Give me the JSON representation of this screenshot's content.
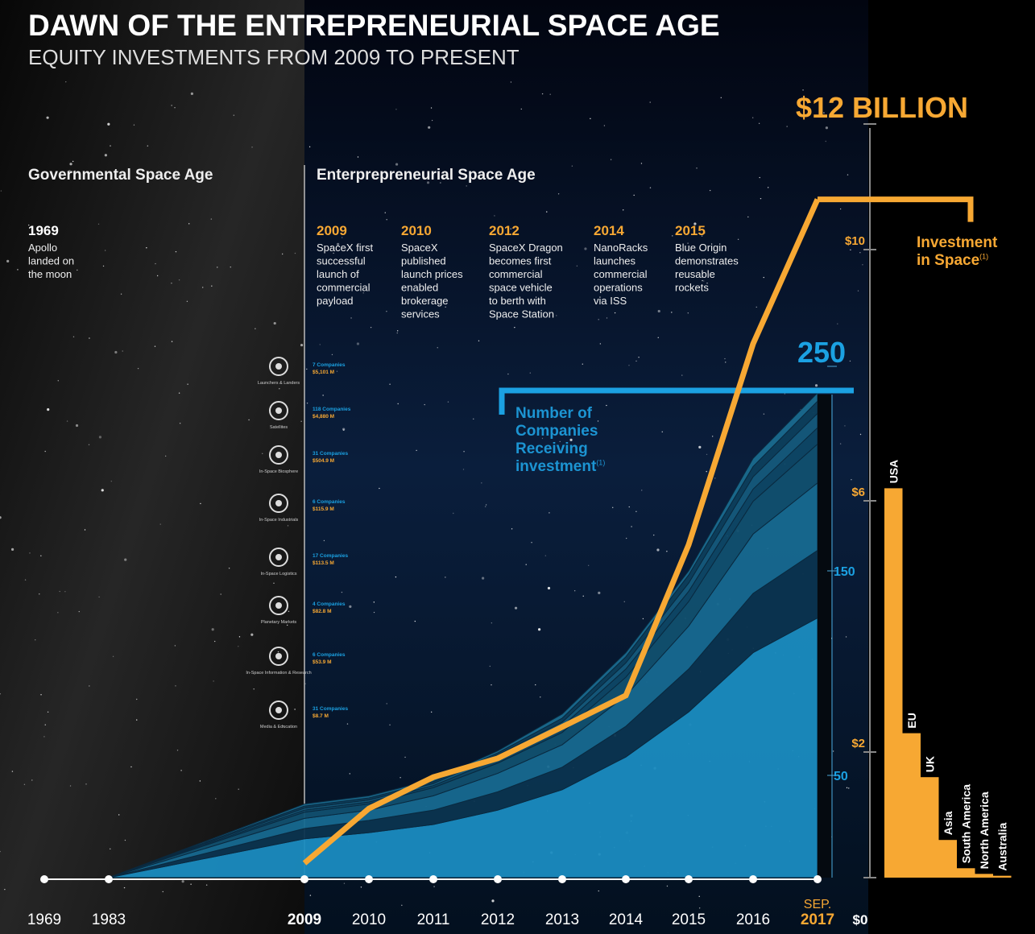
{
  "chart_data": [
    {
      "type": "line",
      "title": "DAWN OF THE ENTREPRENEURIAL SPACE AGE",
      "subtitle": "EQUITY INVESTMENTS FROM 2009 TO PRESENT",
      "categories": [
        "1969",
        "1983",
        "2009",
        "2010",
        "2011",
        "2012",
        "2013",
        "2014",
        "2015",
        "2016",
        "2017"
      ],
      "category_note": "SEP.",
      "series": [
        {
          "name": "Investment in Space",
          "note": "(1)",
          "color": "#f7a833",
          "values": [
            null,
            null,
            0.23,
            1.1,
            1.6,
            1.9,
            2.4,
            2.9,
            5.3,
            8.5,
            10.8
          ]
        }
      ],
      "ylim": [
        0,
        12.5
      ],
      "yticks": [
        {
          "value": 0,
          "label": "$0"
        },
        {
          "value": 2,
          "label": "$2"
        },
        {
          "value": 6,
          "label": "$6"
        },
        {
          "value": 10,
          "label": "$10"
        },
        {
          "value": 12,
          "label": "$12 BILLION"
        }
      ],
      "eras": [
        "Governmental Space Age",
        "Enterprepreneurial Space Age"
      ],
      "milestones": [
        {
          "year": "1969",
          "lines": [
            "Apollo",
            "landed on",
            "the moon"
          ]
        },
        {
          "year": "2009",
          "lines": [
            "SpaceX first",
            "successful",
            "launch of",
            "commercial",
            "payload"
          ]
        },
        {
          "year": "2010",
          "lines": [
            "SpaceX",
            "published",
            "launch prices",
            "enabled",
            "brokerage",
            "services"
          ]
        },
        {
          "year": "2012",
          "lines": [
            "SpaceX Dragon",
            "becomes first",
            "commercial",
            "space vehicle",
            "to berth with",
            "Space Station"
          ]
        },
        {
          "year": "2014",
          "lines": [
            "NanoRacks",
            "launches",
            "commercial",
            "operations",
            "via ISS"
          ]
        },
        {
          "year": "2015",
          "lines": [
            "Blue Origin",
            "demonstrates",
            "reusable",
            "rockets"
          ]
        }
      ]
    },
    {
      "type": "area",
      "stacked": true,
      "title": "Number of Companies Receiving investment",
      "title_note": "(1)",
      "ylim": [
        0,
        250
      ],
      "yticks": [
        50,
        150,
        250
      ],
      "series": [
        {
          "name": "Launchers & Landers",
          "companies": "7 Companies",
          "investment": "$5,101 M",
          "color": "#0e4766",
          "values": [
            null,
            0,
            1,
            1,
            1,
            2,
            3,
            4,
            5,
            6,
            8
          ]
        },
        {
          "name": "Satellites",
          "companies": "118 Companies",
          "investment": "$4,880 M",
          "color": "#1b8cc0",
          "values": [
            null,
            0,
            19,
            22,
            26,
            33,
            43,
            59,
            81,
            110,
            127
          ]
        },
        {
          "name": "In-Space Biosphere",
          "companies": "31 Companies",
          "investment": "$504.9 M",
          "color": "#0b3450",
          "values": [
            null,
            0,
            5,
            6,
            7,
            9,
            11,
            15,
            21,
            29,
            33
          ]
        },
        {
          "name": "In-Space Industrials",
          "companies": "6 Companies",
          "investment": "$115.9 M",
          "color": "#155a7c",
          "values": [
            null,
            0,
            1,
            1,
            1,
            2,
            2,
            3,
            4,
            6,
            7
          ]
        },
        {
          "name": "In-Space Logistics",
          "companies": "17 Companies",
          "investment": "$113.5 M",
          "color": "#11506f",
          "values": [
            null,
            0,
            3,
            3,
            4,
            5,
            6,
            9,
            12,
            16,
            19
          ]
        },
        {
          "name": "Planetary Markets",
          "companies": "4 Companies",
          "investment": "$82.8 M",
          "color": "#1a6b8f",
          "values": [
            null,
            0,
            1,
            1,
            1,
            1,
            2,
            2,
            2,
            4,
            4
          ]
        },
        {
          "name": "In-Space Information & Research",
          "companies": "6 Companies",
          "investment": "$53.9 M",
          "color": "#0d3f5c",
          "values": [
            null,
            0,
            1,
            1,
            1,
            1,
            2,
            3,
            4,
            5,
            6
          ]
        },
        {
          "name": "Media & Education",
          "companies": "31 Companies",
          "investment": "$8.7 M",
          "color": "#176a91",
          "values": [
            null,
            0,
            5,
            5,
            7,
            9,
            11,
            15,
            21,
            29,
            33
          ]
        }
      ]
    },
    {
      "type": "bar",
      "categories": [
        "USA",
        "EU",
        "UK",
        "Asia",
        "South America",
        "North America",
        "Australia"
      ],
      "values": [
        6.2,
        2.3,
        1.6,
        0.6,
        0.15,
        0.06,
        0.03
      ],
      "color": "#f7a833",
      "ylim": [
        0,
        12.5
      ]
    }
  ]
}
